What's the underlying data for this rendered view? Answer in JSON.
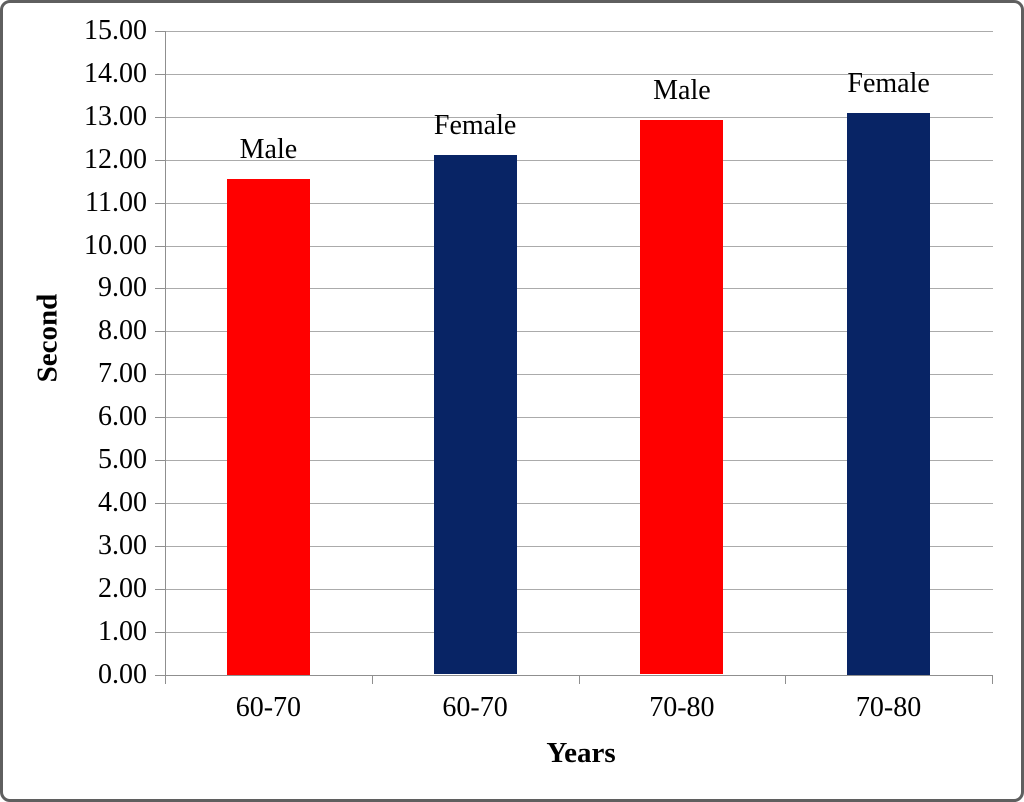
{
  "chart_data": {
    "type": "bar",
    "title": "",
    "ylabel": "Second",
    "xlabel": "Years",
    "categories": [
      "60-70",
      "60-70",
      "70-80",
      "70-80"
    ],
    "series": [
      {
        "name": "Male",
        "category": "60-70",
        "value": 11.55,
        "color": "#ff0000"
      },
      {
        "name": "Female",
        "category": "60-70",
        "value": 12.1,
        "color": "#082465"
      },
      {
        "name": "Male",
        "category": "70-80",
        "value": 12.93,
        "color": "#ff0000"
      },
      {
        "name": "Female",
        "category": "70-80",
        "value": 13.1,
        "color": "#082465"
      }
    ],
    "bar_labels": [
      "Male",
      "Female",
      "Male",
      "Female"
    ],
    "bar_label_position": "above",
    "ylim": [
      0,
      15
    ],
    "ytick_step": 1,
    "ytick_decimals": 2,
    "grid": true,
    "legend": "none",
    "colors": {
      "male": "#ff0000",
      "female": "#082465",
      "gridline": "#ababab",
      "axis": "#8f8f8f",
      "text": "#000000",
      "frame_border": "#5f5f5f",
      "background": "#ffffff"
    }
  }
}
